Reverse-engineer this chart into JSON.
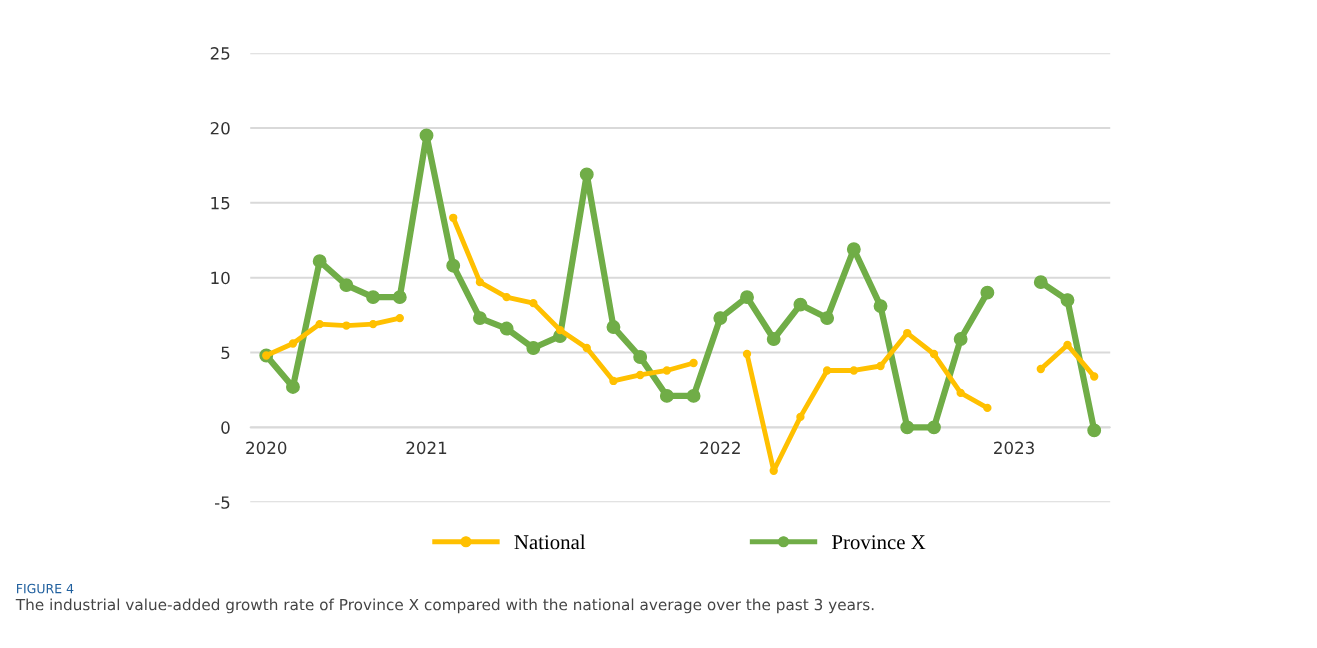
{
  "chart_data": {
    "type": "line",
    "categories": [
      "2020",
      null,
      null,
      null,
      null,
      null,
      "2021",
      null,
      null,
      null,
      null,
      null,
      null,
      null,
      null,
      null,
      null,
      "2022",
      null,
      null,
      null,
      null,
      null,
      null,
      null,
      null,
      null,
      null,
      "2023",
      null,
      null,
      null
    ],
    "series": [
      {
        "name": "National",
        "color": "#ffc000",
        "values": [
          4.8,
          5.6,
          6.9,
          6.8,
          6.9,
          7.3,
          null,
          14.0,
          9.7,
          8.7,
          8.3,
          6.5,
          5.3,
          3.1,
          3.5,
          3.8,
          4.3,
          null,
          4.9,
          -2.9,
          0.7,
          3.8,
          3.8,
          4.1,
          6.3,
          4.9,
          2.3,
          1.3,
          null,
          3.9,
          5.5,
          3.4
        ]
      },
      {
        "name": "Province X",
        "color": "#70ad47",
        "values": [
          4.8,
          2.7,
          11.1,
          9.5,
          8.7,
          8.7,
          19.5,
          10.8,
          7.3,
          6.6,
          5.3,
          6.1,
          16.9,
          6.7,
          4.7,
          2.1,
          2.1,
          7.3,
          8.7,
          5.9,
          8.2,
          7.3,
          11.9,
          8.1,
          0,
          0,
          5.9,
          9.0,
          null,
          9.7,
          8.5,
          -0.2
        ]
      }
    ],
    "ylim": [
      -5,
      25
    ],
    "yticks": [
      -5,
      0,
      5,
      10,
      15,
      20,
      25
    ],
    "grid": "y",
    "legend": "bottom",
    "marker": "circle",
    "line_style": "solid",
    "annotations": [
      "FIGURE 4",
      "The industrial value-added growth rate of Province X compared with the national average over the past 3 years."
    ]
  }
}
